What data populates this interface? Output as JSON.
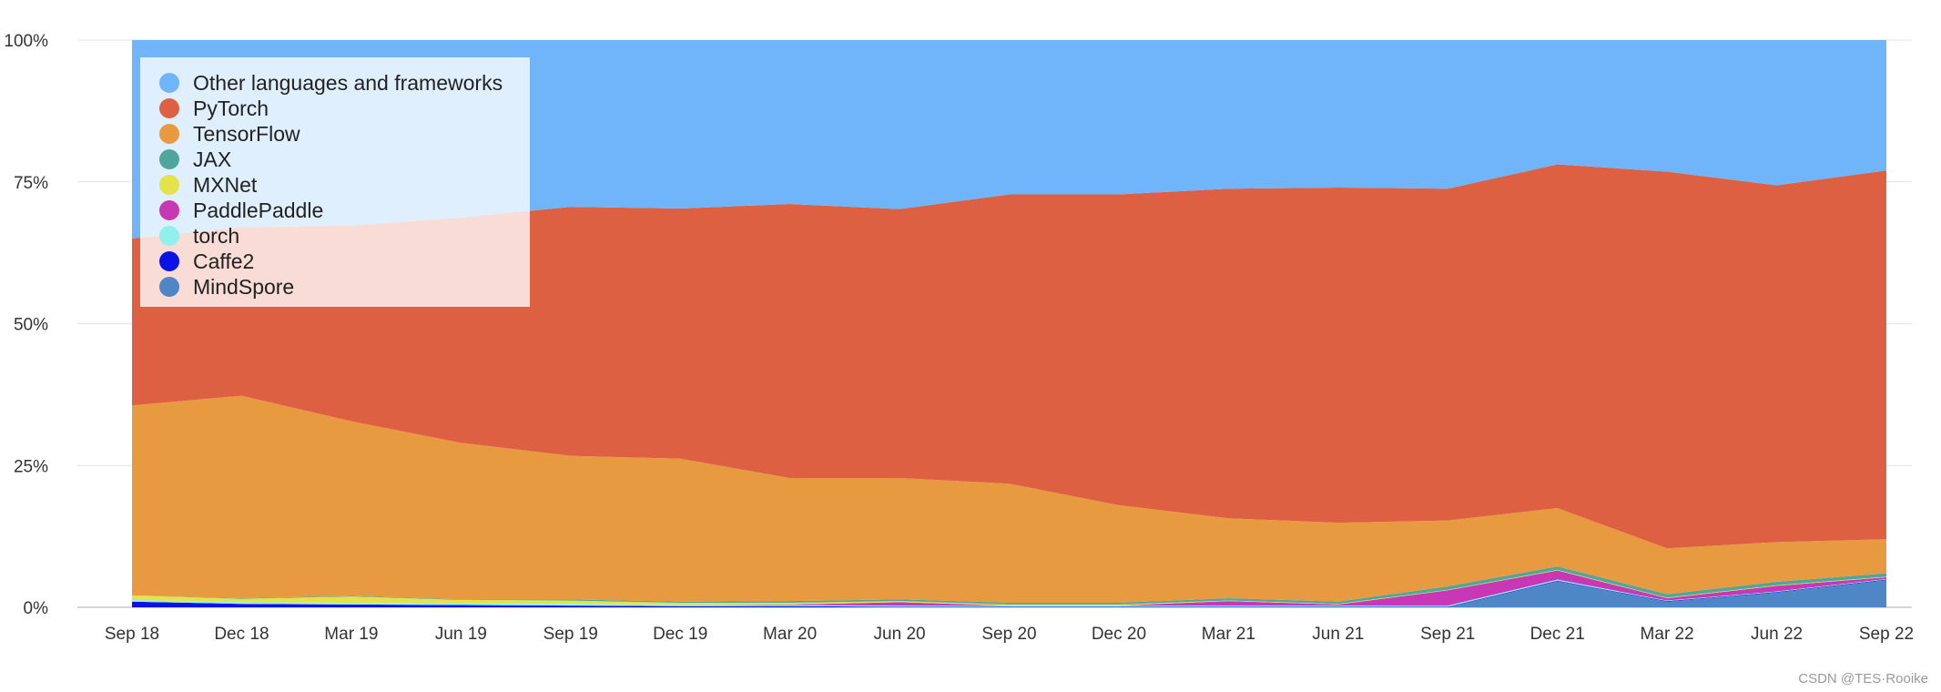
{
  "chart_data": {
    "type": "area",
    "stacked": true,
    "normalized": true,
    "x": [
      "Sep 18",
      "Dec 18",
      "Mar 19",
      "Jun 19",
      "Sep 19",
      "Dec 19",
      "Mar 20",
      "Jun 20",
      "Sep 20",
      "Dec 20",
      "Mar 21",
      "Jun 21",
      "Sep 21",
      "Dec 21",
      "Mar 22",
      "Jun 22",
      "Sep 22"
    ],
    "yticks": [
      "0%",
      "25%",
      "50%",
      "75%",
      "100%"
    ],
    "ylim": [
      0,
      100
    ],
    "grid": true,
    "legend_position": "top-left",
    "series": [
      {
        "name": "MindSpore",
        "color": "#4f86c6",
        "values": [
          0,
          0,
          0,
          0,
          0,
          0,
          0,
          0,
          0,
          0,
          0,
          0,
          0,
          4.6,
          1.0,
          2.6,
          4.8
        ]
      },
      {
        "name": "Caffe2",
        "color": "#0a12e6",
        "values": [
          1.0,
          0.6,
          0.5,
          0.4,
          0.3,
          0.2,
          0.2,
          0.1,
          0.1,
          0.1,
          0.1,
          0.1,
          0.1,
          0.1,
          0.1,
          0.1,
          0.1
        ]
      },
      {
        "name": "torch",
        "color": "#8ff0ec",
        "values": [
          0.3,
          0.3,
          0.3,
          0.3,
          0.3,
          0.2,
          0.2,
          0.2,
          0.2,
          0.2,
          0.2,
          0.2,
          0.2,
          0.2,
          0.1,
          0.1,
          0.1
        ]
      },
      {
        "name": "PaddlePaddle",
        "color": "#c837b4",
        "values": [
          0,
          0,
          0,
          0,
          0,
          0,
          0.1,
          0.6,
          0,
          0,
          0.8,
          0.2,
          2.7,
          1.6,
          0.4,
          1.0,
          0.3
        ]
      },
      {
        "name": "MXNet",
        "color": "#e3e34a",
        "values": [
          0.8,
          0.6,
          1.1,
          0.6,
          0.6,
          0.4,
          0.3,
          0.2,
          0.2,
          0.2,
          0.1,
          0.1,
          0.1,
          0.1,
          0.1,
          0.1,
          0.1
        ]
      },
      {
        "name": "JAX",
        "color": "#4ea69c",
        "values": [
          0,
          0.1,
          0.1,
          0.1,
          0.2,
          0.2,
          0.3,
          0.3,
          0.3,
          0.3,
          0.4,
          0.4,
          0.6,
          0.6,
          0.6,
          0.6,
          0.6
        ]
      },
      {
        "name": "TensorFlow",
        "color": "#e89a40",
        "values": [
          33.5,
          35.7,
          30.8,
          27.6,
          25.3,
          25.2,
          21.7,
          21.4,
          21.0,
          17.2,
          14.1,
          13.9,
          11.6,
          10.3,
          8.1,
          7.0,
          6.0
        ]
      },
      {
        "name": "PyTorch",
        "color": "#de6042",
        "values": [
          29.4,
          29.7,
          34.5,
          39.7,
          43.9,
          44.1,
          48.3,
          47.4,
          51.0,
          54.8,
          58.1,
          59.1,
          58.5,
          60.6,
          66.4,
          62.9,
          65.0
        ]
      },
      {
        "name": "Other languages and frameworks",
        "color": "#70b5f9",
        "values": [
          35.0,
          33.0,
          32.7,
          31.3,
          29.4,
          29.7,
          28.9,
          29.8,
          27.2,
          27.2,
          26.2,
          26.0,
          26.2,
          21.9,
          23.2,
          25.6,
          23.0
        ]
      }
    ],
    "legend_order": [
      "Other languages and frameworks",
      "PyTorch",
      "TensorFlow",
      "JAX",
      "MXNet",
      "PaddlePaddle",
      "torch",
      "Caffe2",
      "MindSpore"
    ]
  },
  "watermark": "CSDN @TES·Rooike"
}
